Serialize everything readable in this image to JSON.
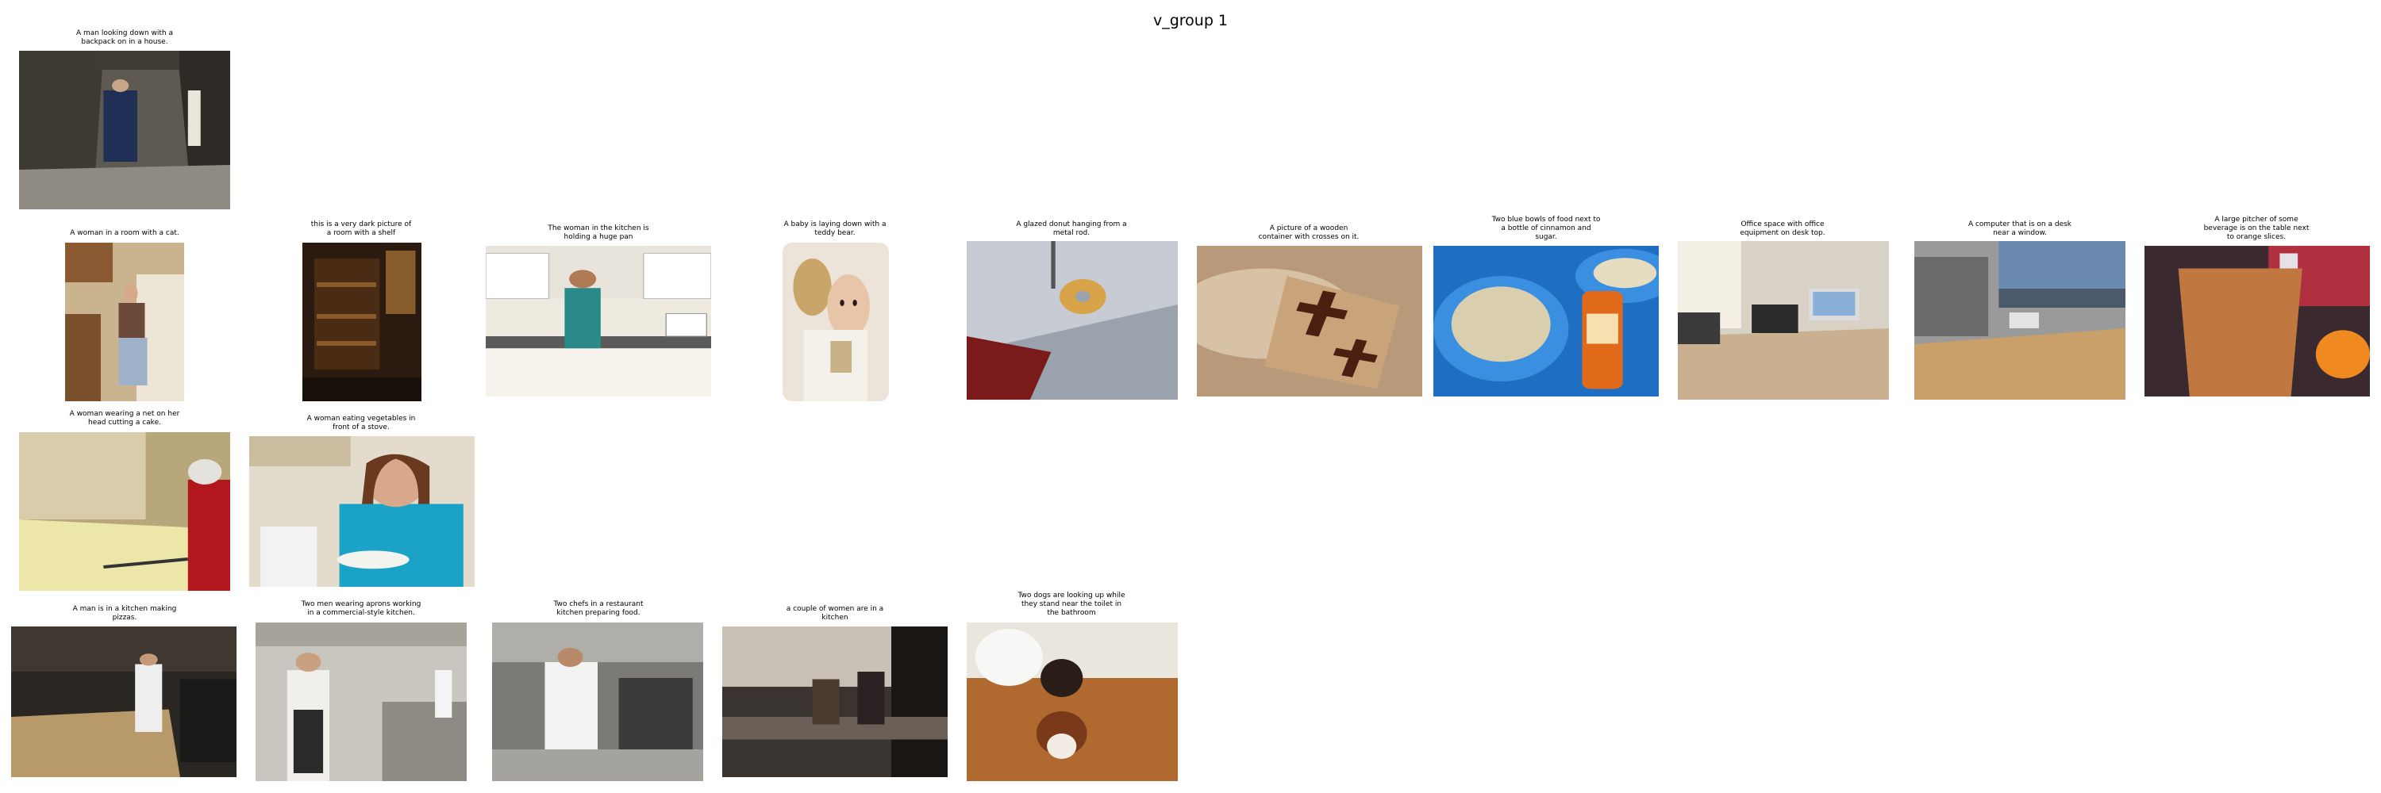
{
  "figure_title": "v_group 1",
  "rows": [
    [
      {
        "caption": "A man looking down with a\nbackpack on in a house.",
        "icon": "dim-stone-room-photo"
      }
    ],
    [
      {
        "caption": "A woman in a room with a cat.",
        "icon": "kitchen-woman-cat-photo"
      },
      {
        "caption": "this is a very dark picture of\na room with a shelf",
        "icon": "dark-room-shelf-photo"
      },
      {
        "caption": "The woman in the kitchen is\nholding a huge pan",
        "icon": "kitchen-woman-pan-photo"
      },
      {
        "caption": "A baby is laying down with a\nteddy bear.",
        "icon": "baby-teddy-photo"
      },
      {
        "caption": "A glazed donut hanging from a\nmetal rod.",
        "icon": "donut-car-photo"
      },
      {
        "caption": "A picture of a wooden\ncontainer with crosses on it.",
        "icon": "wooden-crosses-photo"
      },
      {
        "caption": "Two blue bowls of food next to\na bottle of cinnamon and\nsugar.",
        "icon": "blue-bowls-photo"
      },
      {
        "caption": "Office space with office\nequipment on desk top.",
        "icon": "office-desk-photo"
      },
      {
        "caption": "A computer that is on a desk\nnear a window.",
        "icon": "computer-desk-window-photo"
      },
      {
        "caption": "A large pitcher of some\nbeverage is on the table next\nto orange slices.",
        "icon": "pitcher-orange-photo"
      }
    ],
    [
      {
        "caption": "A woman wearing a net on her\nhead cutting a cake.",
        "icon": "cake-cutting-photo"
      },
      {
        "caption": "A woman eating vegetables in\nfront of a stove.",
        "icon": "woman-eating-photo"
      }
    ],
    [
      {
        "caption": "A man is in a kitchen making\npizzas.",
        "icon": "pizza-kitchen-photo"
      },
      {
        "caption": "Two men wearing aprons working\nin a commercial-style kitchen.",
        "icon": "commercial-kitchen-photo"
      },
      {
        "caption": "Two chefs in a restaurant\nkitchen preparing food.",
        "icon": "restaurant-chefs-photo"
      },
      {
        "caption": "a couple of women  are in a\nkitchen",
        "icon": "women-kitchen-photo"
      },
      {
        "caption": "Two dogs are looking up while\nthey stand near the toilet in\nthe bathroom",
        "icon": "dogs-bathroom-photo"
      }
    ]
  ]
}
